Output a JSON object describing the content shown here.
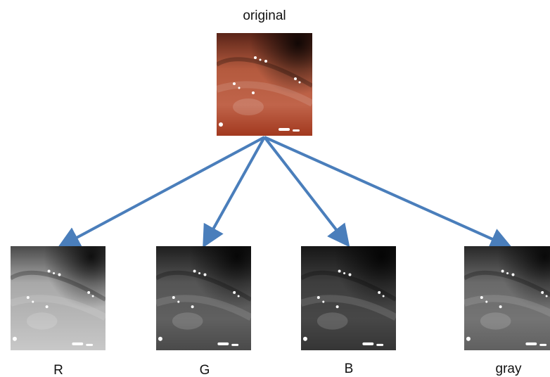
{
  "root": {
    "label": "original"
  },
  "nodes": [
    {
      "label": "R"
    },
    {
      "label": "G"
    },
    {
      "label": "B"
    },
    {
      "label": "gray"
    }
  ]
}
